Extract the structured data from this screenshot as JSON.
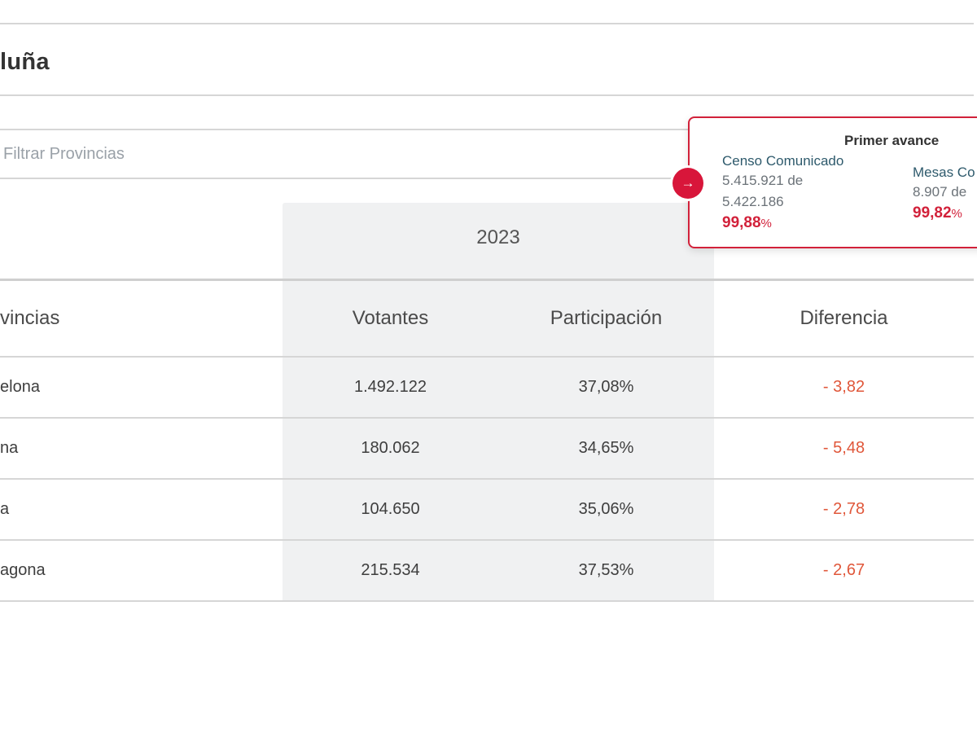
{
  "page": {
    "title": "luña"
  },
  "filter": {
    "placeholder": "Filtrar Provincias",
    "value": ""
  },
  "table": {
    "year": "2023",
    "headers": {
      "name": "vincias",
      "votantes": "Votantes",
      "participacion": "Participación",
      "diferencia": "Diferencia"
    },
    "rows": [
      {
        "name": "elona",
        "votantes": "1.492.122",
        "participacion": "37,08%",
        "diferencia": "- 3,82"
      },
      {
        "name": "na",
        "votantes": "180.062",
        "participacion": "34,65%",
        "diferencia": "- 5,48"
      },
      {
        "name": "a",
        "votantes": "104.650",
        "participacion": "35,06%",
        "diferencia": "- 2,78"
      },
      {
        "name": "agona",
        "votantes": "215.534",
        "participacion": "37,53%",
        "diferencia": "- 2,67"
      }
    ]
  },
  "popup": {
    "title": "Primer avance",
    "censo": {
      "label": "Censo Comunicado",
      "line1": "5.415.921 de",
      "line2": "5.422.186",
      "pct": "99,88",
      "pct_sign": "%"
    },
    "mesas": {
      "label": "Mesas Co",
      "line1": "8.907 de",
      "pct": "99,82",
      "pct_sign": "%"
    },
    "arrow_icon": "arrow-right-icon"
  },
  "colors": {
    "accent": "#d2213a",
    "negative": "#e0573a",
    "label": "#2e5a6c"
  }
}
